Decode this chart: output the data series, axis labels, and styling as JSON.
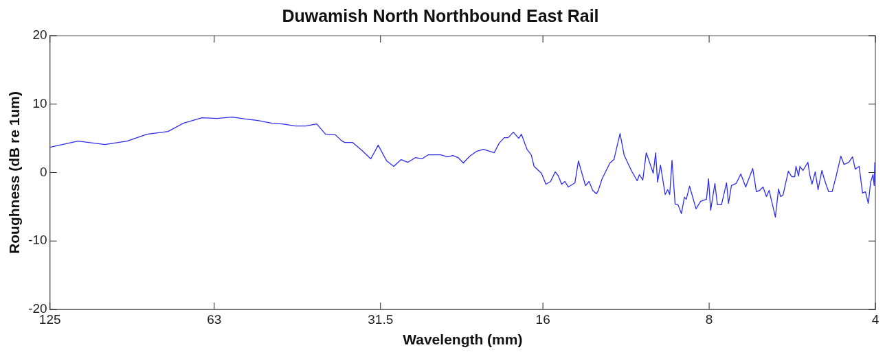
{
  "chart_data": {
    "type": "line",
    "title": "Duwamish North Northbound East Rail",
    "xlabel": "Wavelength (mm)",
    "ylabel": "Roughness (dB re 1um)",
    "log": "x",
    "xlim": [
      125,
      4
    ],
    "xticks": [
      125,
      63,
      31.5,
      16,
      8,
      4
    ],
    "ylim": [
      -20,
      20
    ],
    "yticks": [
      -20,
      -10,
      0,
      10,
      20
    ],
    "grid": false,
    "legend": false,
    "marker": "none",
    "line_style": "solid",
    "series": [
      {
        "color": "#2b2bf0",
        "x": [
          125,
          111.2,
          99.4,
          90.6,
          83.4,
          76.4,
          71.7,
          66.3,
          62.3,
          58.5,
          55.1,
          52.5,
          49.5,
          47.4,
          44.9,
          43.0,
          41.1,
          39.6,
          38.0,
          37.1,
          36.6,
          35.4,
          34.0,
          32.8,
          31.8,
          30.7,
          29.8,
          28.9,
          28.1,
          27.2,
          26.5,
          25.8,
          24.5,
          23.8,
          23.3,
          22.8,
          22.3,
          21.7,
          21.1,
          20.5,
          19.6,
          19.2,
          18.8,
          18.5,
          18.1,
          17.7,
          17.5,
          17.1,
          16.8,
          16.6,
          16.1,
          15.8,
          15.5,
          15.2,
          15.0,
          14.8,
          14.6,
          14.4,
          14.0,
          13.8,
          13.4,
          13.2,
          13.0,
          12.8,
          12.7,
          12.5,
          12.1,
          11.9,
          11.6,
          11.4,
          11.05,
          10.8,
          10.7,
          10.55,
          10.4,
          10.1,
          10.0,
          9.92,
          9.8,
          9.61,
          9.51,
          9.43,
          9.34,
          9.22,
          9.11,
          8.98,
          8.87,
          8.8,
          8.68,
          8.45,
          8.29,
          8.09,
          8.02,
          7.95,
          7.81,
          7.73,
          7.6,
          7.44,
          7.38,
          7.29,
          7.15,
          7.01,
          6.87,
          6.67,
          6.57,
          6.48,
          6.39,
          6.3,
          6.23,
          6.07,
          5.99,
          5.94,
          5.88,
          5.75,
          5.67,
          5.6,
          5.57,
          5.51,
          5.48,
          5.41,
          5.3,
          5.26,
          5.21,
          5.14,
          5.08,
          5.0,
          4.94,
          4.86,
          4.79,
          4.71,
          4.62,
          4.56,
          4.47,
          4.4,
          4.35,
          4.28,
          4.22,
          4.17,
          4.12,
          4.08,
          4.04,
          4.02,
          4.01
        ],
        "values": [
          3.7,
          4.6,
          4.1,
          4.6,
          5.6,
          6.0,
          7.2,
          8.0,
          7.9,
          8.1,
          7.8,
          7.6,
          7.2,
          7.1,
          6.8,
          6.8,
          7.1,
          5.6,
          5.5,
          4.7,
          4.4,
          4.4,
          3.2,
          2.0,
          4.0,
          1.7,
          0.9,
          1.9,
          1.5,
          2.2,
          2.0,
          2.6,
          2.6,
          2.3,
          2.5,
          2.2,
          1.4,
          2.4,
          3.1,
          3.4,
          2.9,
          4.3,
          5.1,
          5.1,
          5.9,
          5.0,
          5.6,
          3.4,
          2.6,
          0.9,
          -0.1,
          -1.7,
          -1.3,
          0.1,
          -0.5,
          -1.7,
          -1.3,
          -2.1,
          -1.5,
          1.7,
          -1.9,
          -1.3,
          -2.6,
          -3.1,
          -2.6,
          -0.9,
          1.4,
          1.9,
          5.7,
          2.5,
          0.2,
          -1.2,
          -0.3,
          -1.1,
          2.9,
          -0.1,
          2.9,
          -1.4,
          1.1,
          -3.2,
          -2.5,
          -3.2,
          1.8,
          -4.6,
          -4.7,
          -6.0,
          -3.6,
          -3.9,
          -2.0,
          -5.3,
          -4.2,
          -3.9,
          -0.9,
          -5.5,
          -1.6,
          -4.7,
          -4.7,
          -1.5,
          -4.5,
          -1.9,
          -1.6,
          -0.2,
          -2.1,
          0.6,
          -2.8,
          -2.6,
          -2.1,
          -3.5,
          -2.6,
          -6.5,
          -2.4,
          -3.5,
          -3.3,
          0.2,
          -0.6,
          -0.6,
          0.9,
          -0.5,
          0.9,
          0.3,
          1.5,
          -0.3,
          -1.7,
          0.1,
          -2.5,
          0.3,
          -1.2,
          -2.8,
          -2.8,
          -0.5,
          2.4,
          1.2,
          1.5,
          2.3,
          0.5,
          0.9,
          -3.0,
          -2.8,
          -4.5,
          -1.4,
          -0.3,
          -1.9,
          1.5
        ]
      }
    ]
  }
}
